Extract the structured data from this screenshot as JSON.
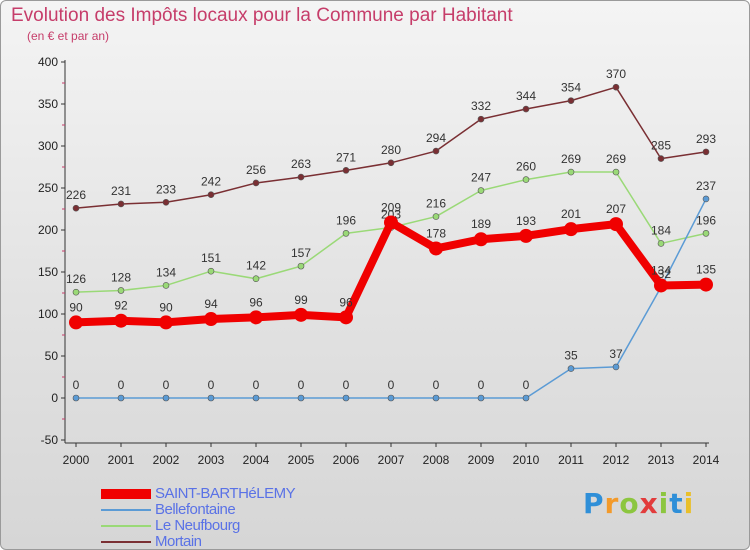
{
  "header": {
    "title": "Evolution des Impôts locaux pour la Commune par Habitant",
    "subtitle": "(en € et par an)"
  },
  "brand": {
    "letters": [
      "P",
      "r",
      "o",
      "x",
      "i",
      "t",
      "i"
    ],
    "colors": [
      "#2f8fd8",
      "#f39a2a",
      "#8cc63f",
      "#e23c3c",
      "#8cc63f",
      "#2f8fd8",
      "#e9bf2a"
    ]
  },
  "chart_data": {
    "type": "line",
    "title": "Evolution des Impôts locaux pour la Commune par Habitant",
    "subtitle": "(en € et par an)",
    "x": [
      "2000",
      "2001",
      "2002",
      "2003",
      "2004",
      "2005",
      "2006",
      "2007",
      "2008",
      "2009",
      "2010",
      "2011",
      "2012",
      "2013",
      "2014"
    ],
    "ylim": [
      -50,
      400
    ],
    "yticks": [
      "-50",
      "0",
      "50",
      "100",
      "150",
      "200",
      "250",
      "300",
      "350",
      "400"
    ],
    "grid": false,
    "legend_position": "bottom-left",
    "series": [
      {
        "name": "SAINT-BARTHéLEMY",
        "color": "#f00000",
        "values": [
          90,
          92,
          90,
          94,
          96,
          99,
          96,
          209,
          178,
          189,
          193,
          201,
          207,
          134,
          135
        ],
        "labels": [
          "90",
          "92",
          "90",
          "94",
          "96",
          "99",
          "96",
          "209",
          "178",
          "189",
          "193",
          "201",
          "207",
          "134",
          "135"
        ]
      },
      {
        "name": "Bellefontaine",
        "color": "#5b9bd5",
        "values": [
          0,
          0,
          0,
          0,
          0,
          0,
          0,
          0,
          0,
          0,
          0,
          35,
          37,
          132,
          237
        ],
        "labels": [
          "0",
          "0",
          "0",
          "0",
          "0",
          "0",
          "0",
          "0",
          "0",
          "0",
          "0",
          "35",
          "37",
          "132",
          "237"
        ]
      },
      {
        "name": "Le Neufbourg",
        "color": "#9ad977",
        "values": [
          126,
          128,
          134,
          151,
          142,
          157,
          196,
          203,
          216,
          247,
          260,
          269,
          269,
          184,
          196
        ],
        "labels": [
          "126",
          "128",
          "134",
          "151",
          "142",
          "157",
          "196",
          "203",
          "216",
          "247",
          "260",
          "269",
          "269",
          "184",
          "196"
        ]
      },
      {
        "name": "Mortain",
        "color": "#7a2f33",
        "values": [
          226,
          231,
          233,
          242,
          256,
          263,
          271,
          280,
          294,
          332,
          344,
          354,
          370,
          285,
          293
        ],
        "labels": [
          "226",
          "231",
          "233",
          "242",
          "256",
          "263",
          "271",
          "280",
          "294",
          "332",
          "344",
          "354",
          "370",
          "285",
          "293"
        ]
      }
    ]
  }
}
